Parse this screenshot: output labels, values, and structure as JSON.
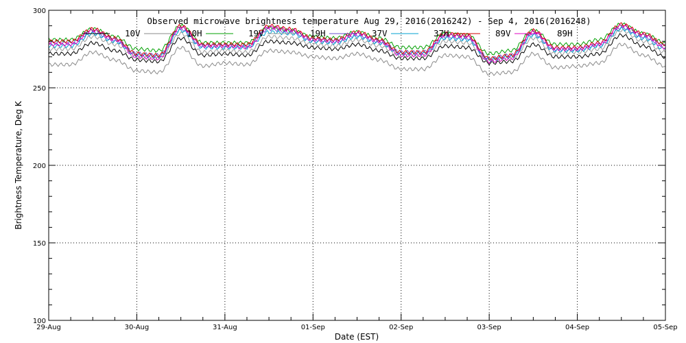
{
  "chart_data": {
    "type": "line",
    "title": "Observed microwave brightness temperature Aug 29, 2016(2016242) - Sep  4, 2016(2016248)",
    "xlabel": "Date (EST)",
    "ylabel": "Brightness Temperature, Deg K",
    "xlim": [
      0,
      7
    ],
    "ylim": [
      100,
      300
    ],
    "x_tick_labels": [
      "29-Aug",
      "30-Aug",
      "31-Aug",
      "01-Sep",
      "02-Sep",
      "03-Sep",
      "04-Sep",
      "05-Sep"
    ],
    "y_ticks": [
      100,
      150,
      200,
      250,
      300
    ],
    "grid": true,
    "legend_position": "top",
    "series": [
      {
        "name": "10V",
        "color": "#000000",
        "x": [
          0,
          0.25,
          0.5,
          0.75,
          1.0,
          1.25,
          1.5,
          1.75,
          2.0,
          2.25,
          2.5,
          2.75,
          3.0,
          3.25,
          3.5,
          3.75,
          4.0,
          4.25,
          4.5,
          4.75,
          5.0,
          5.25,
          5.5,
          5.75,
          6.0,
          6.25,
          6.5,
          6.75,
          7.0
        ],
        "values": [
          272,
          272,
          279,
          274,
          268,
          267,
          282,
          271,
          272,
          271,
          280,
          279,
          276,
          275,
          278,
          274,
          269,
          269,
          277,
          276,
          266,
          267,
          278,
          270,
          270,
          272,
          284,
          277,
          270
        ]
      },
      {
        "name": "10H",
        "color": "#8a8a8a",
        "x": [
          0,
          0.25,
          0.5,
          0.75,
          1.0,
          1.25,
          1.5,
          1.75,
          2.0,
          2.25,
          2.5,
          2.75,
          3.0,
          3.25,
          3.5,
          3.75,
          4.0,
          4.25,
          4.5,
          4.75,
          5.0,
          5.25,
          5.5,
          5.75,
          6.0,
          6.25,
          6.5,
          6.75,
          7.0
        ],
        "values": [
          265,
          265,
          273,
          268,
          261,
          260,
          276,
          264,
          266,
          265,
          274,
          273,
          270,
          269,
          272,
          268,
          262,
          262,
          271,
          270,
          259,
          260,
          272,
          263,
          264,
          266,
          278,
          271,
          264
        ]
      },
      {
        "name": "19V",
        "color": "#00a000",
        "x": [
          0,
          0.25,
          0.5,
          0.75,
          1.0,
          1.25,
          1.5,
          1.75,
          2.0,
          2.25,
          2.5,
          2.75,
          3.0,
          3.25,
          3.5,
          3.75,
          4.0,
          4.25,
          4.5,
          4.75,
          5.0,
          5.25,
          5.5,
          5.75,
          6.0,
          6.25,
          6.5,
          6.75,
          7.0
        ],
        "values": [
          281,
          281,
          288,
          283,
          275,
          274,
          290,
          279,
          279,
          279,
          289,
          287,
          283,
          282,
          286,
          282,
          276,
          276,
          285,
          284,
          272,
          274,
          287,
          278,
          278,
          281,
          291,
          285,
          279
        ]
      },
      {
        "name": "19H",
        "color": "#9a9a9a",
        "x": [
          0,
          0.25,
          0.5,
          0.75,
          1.0,
          1.25,
          1.5,
          1.75,
          2.0,
          2.25,
          2.5,
          2.75,
          3.0,
          3.25,
          3.5,
          3.75,
          4.0,
          4.25,
          4.5,
          4.75,
          5.0,
          5.25,
          5.5,
          5.75,
          6.0,
          6.25,
          6.5,
          6.75,
          7.0
        ],
        "values": [
          275,
          275,
          283,
          278,
          270,
          269,
          285,
          273,
          274,
          273,
          283,
          282,
          278,
          277,
          281,
          277,
          271,
          271,
          280,
          279,
          268,
          269,
          282,
          272,
          273,
          275,
          287,
          280,
          273
        ]
      },
      {
        "name": "37V",
        "color": "#6a4fd0",
        "x": [
          0,
          0.25,
          0.5,
          0.75,
          1.0,
          1.25,
          1.5,
          1.75,
          2.0,
          2.25,
          2.5,
          2.75,
          3.0,
          3.25,
          3.5,
          3.75,
          4.0,
          4.25,
          4.5,
          4.75,
          5.0,
          5.25,
          5.5,
          5.75,
          6.0,
          6.25,
          6.5,
          6.75,
          7.0
        ],
        "values": [
          279,
          279,
          286,
          281,
          272,
          271,
          288,
          277,
          277,
          277,
          288,
          286,
          281,
          280,
          284,
          280,
          273,
          273,
          283,
          282,
          269,
          271,
          285,
          275,
          275,
          278,
          289,
          283,
          277
        ]
      },
      {
        "name": "37H",
        "color": "#00a0d0",
        "x": [
          0,
          0.25,
          0.5,
          0.75,
          1.0,
          1.25,
          1.5,
          1.75,
          2.0,
          2.25,
          2.5,
          2.75,
          3.0,
          3.25,
          3.5,
          3.75,
          4.0,
          4.25,
          4.5,
          4.75,
          5.0,
          5.25,
          5.5,
          5.75,
          6.0,
          6.25,
          6.5,
          6.75,
          7.0
        ],
        "values": [
          277,
          277,
          285,
          280,
          271,
          270,
          287,
          276,
          276,
          276,
          286,
          285,
          280,
          279,
          283,
          279,
          272,
          272,
          282,
          281,
          268,
          270,
          284,
          274,
          274,
          277,
          288,
          282,
          275
        ]
      },
      {
        "name": "89V",
        "color": "#d00000",
        "x": [
          0,
          0.25,
          0.5,
          0.75,
          1.0,
          1.25,
          1.5,
          1.75,
          2.0,
          2.25,
          2.5,
          2.75,
          3.0,
          3.25,
          3.5,
          3.75,
          4.0,
          4.25,
          4.5,
          4.75,
          5.0,
          5.25,
          5.5,
          5.75,
          6.0,
          6.25,
          6.5,
          6.75,
          7.0
        ],
        "values": [
          280,
          280,
          288,
          282,
          272,
          271,
          290,
          278,
          278,
          278,
          290,
          288,
          282,
          281,
          286,
          281,
          273,
          273,
          285,
          284,
          269,
          271,
          287,
          276,
          276,
          279,
          291,
          285,
          278
        ]
      },
      {
        "name": "89H",
        "color": "#e000c0",
        "x": [
          0,
          0.25,
          0.5,
          0.75,
          1.0,
          1.25,
          1.5,
          1.75,
          2.0,
          2.25,
          2.5,
          2.75,
          3.0,
          3.25,
          3.5,
          3.75,
          4.0,
          4.25,
          4.5,
          4.75,
          5.0,
          5.25,
          5.5,
          5.75,
          6.0,
          6.25,
          6.5,
          6.75,
          7.0
        ],
        "values": [
          278,
          278,
          287,
          281,
          270,
          269,
          289,
          277,
          277,
          276,
          289,
          287,
          281,
          280,
          285,
          280,
          271,
          271,
          284,
          283,
          267,
          269,
          286,
          275,
          275,
          278,
          290,
          284,
          276
        ]
      }
    ]
  }
}
